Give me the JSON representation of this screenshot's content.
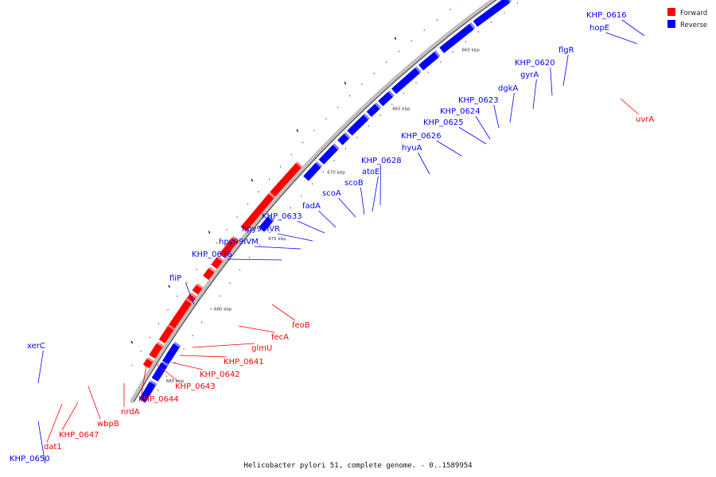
{
  "caption": "Helicobacter pylori 51, complete genome. - 0..1589954",
  "legend": [
    {
      "label": "Forward",
      "color": "#ff0000"
    },
    {
      "label": "Reverse",
      "color": "#0000ff"
    }
  ],
  "colors": {
    "forward": "#ff0000",
    "reverse": "#0000ff",
    "line": "#444444",
    "backbone": "#c0c0c0"
  },
  "kbp_labels": [
    "645 kbp",
    "650 kbp",
    "655 kbp",
    "660 kbp",
    "665 kbp",
    "670 kbp",
    "675 kbp",
    "680 kbp",
    "685 kbp"
  ],
  "reverse_genes": [
    "KHP_0616",
    "hopE",
    "flgR",
    "KHP_0620",
    "gyrA",
    "dgkA",
    "KHP_0623",
    "KHP_0624",
    "KHP_0625",
    "KHP_0626",
    "hyuA",
    "KHP_0628",
    "atoE",
    "scoB",
    "scoA",
    "fadA",
    "KHP_0633",
    "hpy99IVR",
    "hpy99IVM",
    "KHP_0636",
    "fliP",
    "xerC",
    "KHP_0650"
  ],
  "forward_genes": [
    "uvrA",
    "feoB",
    "fecA",
    "glmU",
    "KHP_0641",
    "KHP_0642",
    "KHP_0643",
    "KHP_0644",
    "nrdA",
    "wbpB",
    "KHP_0647",
    "dat1"
  ]
}
